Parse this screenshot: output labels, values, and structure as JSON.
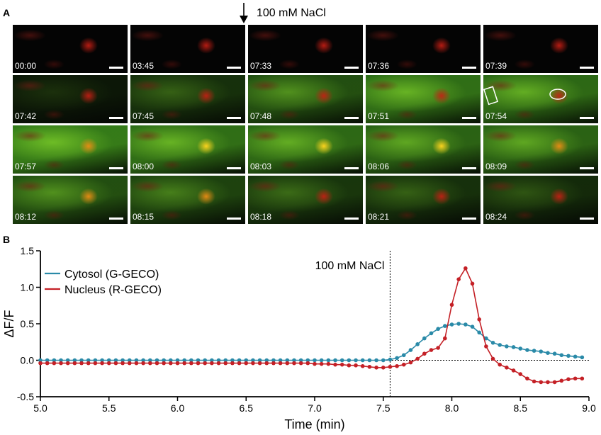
{
  "panel_a": {
    "label": "A",
    "arrow_label": "100 mM NaCl",
    "frames": [
      {
        "time": "00:00",
        "green": 0.0,
        "nucleus": "red"
      },
      {
        "time": "03:45",
        "green": 0.0,
        "nucleus": "red"
      },
      {
        "time": "07:33",
        "green": 0.0,
        "nucleus": "red"
      },
      {
        "time": "07:36",
        "green": 0.0,
        "nucleus": "red"
      },
      {
        "time": "07:39",
        "green": 0.0,
        "nucleus": "red"
      },
      {
        "time": "07:42",
        "green": 0.15,
        "nucleus": "red"
      },
      {
        "time": "07:45",
        "green": 0.35,
        "nucleus": "red"
      },
      {
        "time": "07:48",
        "green": 0.6,
        "nucleus": "red"
      },
      {
        "time": "07:51",
        "green": 0.85,
        "nucleus": "red"
      },
      {
        "time": "07:54",
        "green": 0.8,
        "nucleus": "red",
        "roi": true
      },
      {
        "time": "07:57",
        "green": 0.95,
        "nucleus": "orange"
      },
      {
        "time": "08:00",
        "green": 0.85,
        "nucleus": "yellow"
      },
      {
        "time": "08:03",
        "green": 0.8,
        "nucleus": "yellow"
      },
      {
        "time": "08:06",
        "green": 0.75,
        "nucleus": "yellow"
      },
      {
        "time": "08:09",
        "green": 0.75,
        "nucleus": "orange"
      },
      {
        "time": "08:12",
        "green": 0.6,
        "nucleus": "orange"
      },
      {
        "time": "08:15",
        "green": 0.5,
        "nucleus": "orange"
      },
      {
        "time": "08:18",
        "green": 0.4,
        "nucleus": "red"
      },
      {
        "time": "08:21",
        "green": 0.35,
        "nucleus": "red"
      },
      {
        "time": "08:24",
        "green": 0.3,
        "nucleus": "red"
      }
    ]
  },
  "panel_b": {
    "label": "B"
  },
  "chart_data": {
    "type": "line",
    "title": "",
    "xlabel": "Time (min)",
    "ylabel": "ΔF/F",
    "xlim": [
      5.0,
      9.0
    ],
    "ylim": [
      -0.5,
      1.5
    ],
    "xticks": [
      5.0,
      5.5,
      6.0,
      6.5,
      7.0,
      7.5,
      8.0,
      8.5,
      9.0
    ],
    "xtick_labels": [
      "5.0",
      "5.5",
      "6.0",
      "6.5",
      "7.0",
      "7.5",
      "8.0",
      "8.5",
      "9.0"
    ],
    "yticks": [
      -0.5,
      0.0,
      0.5,
      1.0,
      1.5
    ],
    "ytick_labels": [
      "-0.5",
      "0.0",
      "0.5",
      "1.0",
      "1.5"
    ],
    "annotation": {
      "text": "100 mM NaCl",
      "x": 7.55
    },
    "legend_position": "top-left",
    "series": [
      {
        "name": "Cytosol (G-GECO)",
        "color": "#2a8aa8",
        "x": [
          5.0,
          5.05,
          5.1,
          5.15,
          5.2,
          5.25,
          5.3,
          5.35,
          5.4,
          5.45,
          5.5,
          5.55,
          5.6,
          5.65,
          5.7,
          5.75,
          5.8,
          5.85,
          5.9,
          5.95,
          6.0,
          6.05,
          6.1,
          6.15,
          6.2,
          6.25,
          6.3,
          6.35,
          6.4,
          6.45,
          6.5,
          6.55,
          6.6,
          6.65,
          6.7,
          6.75,
          6.8,
          6.85,
          6.9,
          6.95,
          7.0,
          7.05,
          7.1,
          7.15,
          7.2,
          7.25,
          7.3,
          7.35,
          7.4,
          7.45,
          7.5,
          7.55,
          7.6,
          7.65,
          7.7,
          7.75,
          7.8,
          7.85,
          7.9,
          7.95,
          8.0,
          8.05,
          8.1,
          8.15,
          8.2,
          8.25,
          8.3,
          8.35,
          8.4,
          8.45,
          8.5,
          8.55,
          8.6,
          8.65,
          8.7,
          8.75,
          8.8,
          8.85,
          8.9,
          8.95
        ],
        "values": [
          0.0,
          0.0,
          0.0,
          0.0,
          0.0,
          0.0,
          0.0,
          0.0,
          0.0,
          0.0,
          0.0,
          0.0,
          0.0,
          0.0,
          0.0,
          0.0,
          0.0,
          0.0,
          0.0,
          0.0,
          0.0,
          0.0,
          0.0,
          0.0,
          0.0,
          0.0,
          0.0,
          0.0,
          0.0,
          0.0,
          0.0,
          0.0,
          0.0,
          0.0,
          0.0,
          0.0,
          0.0,
          0.0,
          0.0,
          0.0,
          0.0,
          0.0,
          0.0,
          0.0,
          0.0,
          0.0,
          0.0,
          0.0,
          0.0,
          0.0,
          0.0,
          0.01,
          0.03,
          0.07,
          0.14,
          0.22,
          0.3,
          0.37,
          0.43,
          0.47,
          0.49,
          0.5,
          0.49,
          0.46,
          0.38,
          0.3,
          0.24,
          0.21,
          0.19,
          0.18,
          0.16,
          0.14,
          0.13,
          0.12,
          0.1,
          0.09,
          0.07,
          0.06,
          0.05,
          0.04
        ]
      },
      {
        "name": "Nucleus (R-GECO)",
        "color": "#c42026",
        "x": [
          5.0,
          5.05,
          5.1,
          5.15,
          5.2,
          5.25,
          5.3,
          5.35,
          5.4,
          5.45,
          5.5,
          5.55,
          5.6,
          5.65,
          5.7,
          5.75,
          5.8,
          5.85,
          5.9,
          5.95,
          6.0,
          6.05,
          6.1,
          6.15,
          6.2,
          6.25,
          6.3,
          6.35,
          6.4,
          6.45,
          6.5,
          6.55,
          6.6,
          6.65,
          6.7,
          6.75,
          6.8,
          6.85,
          6.9,
          6.95,
          7.0,
          7.05,
          7.1,
          7.15,
          7.2,
          7.25,
          7.3,
          7.35,
          7.4,
          7.45,
          7.5,
          7.55,
          7.6,
          7.65,
          7.7,
          7.75,
          7.8,
          7.85,
          7.9,
          7.95,
          8.0,
          8.05,
          8.1,
          8.15,
          8.2,
          8.25,
          8.3,
          8.35,
          8.4,
          8.45,
          8.5,
          8.55,
          8.6,
          8.65,
          8.7,
          8.75,
          8.8,
          8.85,
          8.9,
          8.95
        ],
        "values": [
          -0.04,
          -0.04,
          -0.04,
          -0.04,
          -0.04,
          -0.04,
          -0.04,
          -0.04,
          -0.04,
          -0.04,
          -0.04,
          -0.04,
          -0.04,
          -0.04,
          -0.04,
          -0.04,
          -0.04,
          -0.04,
          -0.04,
          -0.04,
          -0.04,
          -0.04,
          -0.04,
          -0.04,
          -0.04,
          -0.04,
          -0.04,
          -0.04,
          -0.04,
          -0.04,
          -0.04,
          -0.04,
          -0.04,
          -0.04,
          -0.04,
          -0.04,
          -0.04,
          -0.04,
          -0.04,
          -0.04,
          -0.05,
          -0.05,
          -0.05,
          -0.06,
          -0.06,
          -0.07,
          -0.07,
          -0.08,
          -0.09,
          -0.1,
          -0.1,
          -0.09,
          -0.08,
          -0.06,
          -0.03,
          0.02,
          0.09,
          0.14,
          0.17,
          0.3,
          0.76,
          1.11,
          1.26,
          1.05,
          0.56,
          0.19,
          0.02,
          -0.06,
          -0.1,
          -0.14,
          -0.19,
          -0.25,
          -0.29,
          -0.3,
          -0.3,
          -0.3,
          -0.28,
          -0.26,
          -0.25,
          -0.25
        ]
      }
    ]
  }
}
